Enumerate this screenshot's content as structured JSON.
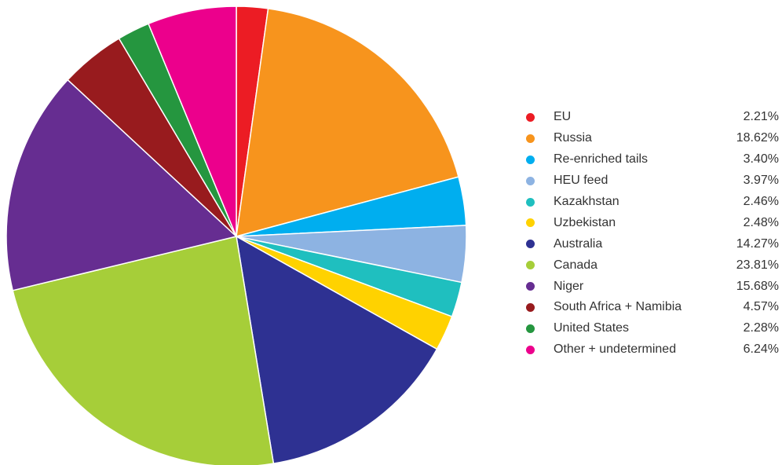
{
  "chart_data": {
    "type": "pie",
    "title": "",
    "legend_position": "right",
    "unit": "%",
    "slices": [
      {
        "label": "EU",
        "value": 2.21,
        "value_label": "2.21%",
        "color": "#ec1c24"
      },
      {
        "label": "Russia",
        "value": 18.62,
        "value_label": "18.62%",
        "color": "#f7941d"
      },
      {
        "label": "Re-enriched tails",
        "value": 3.4,
        "value_label": "3.40%",
        "color": "#00aeef"
      },
      {
        "label": "HEU feed",
        "value": 3.97,
        "value_label": "3.97%",
        "color": "#8db3e2"
      },
      {
        "label": "Kazakhstan",
        "value": 2.46,
        "value_label": "2.46%",
        "color": "#1fbfbf"
      },
      {
        "label": "Uzbekistan",
        "value": 2.48,
        "value_label": "2.48%",
        "color": "#ffd200"
      },
      {
        "label": "Australia",
        "value": 14.27,
        "value_label": "14.27%",
        "color": "#2e3192"
      },
      {
        "label": "Canada",
        "value": 23.81,
        "value_label": "23.81%",
        "color": "#a6ce39"
      },
      {
        "label": "Niger",
        "value": 15.68,
        "value_label": "15.68%",
        "color": "#662d91"
      },
      {
        "label": "South Africa + Namibia",
        "value": 4.57,
        "value_label": "4.57%",
        "color": "#981b1e"
      },
      {
        "label": "United States",
        "value": 2.28,
        "value_label": "2.28%",
        "color": "#25963f"
      },
      {
        "label": "Other + undetermined",
        "value": 6.24,
        "value_label": "6.24%",
        "color": "#ec008c"
      }
    ]
  }
}
